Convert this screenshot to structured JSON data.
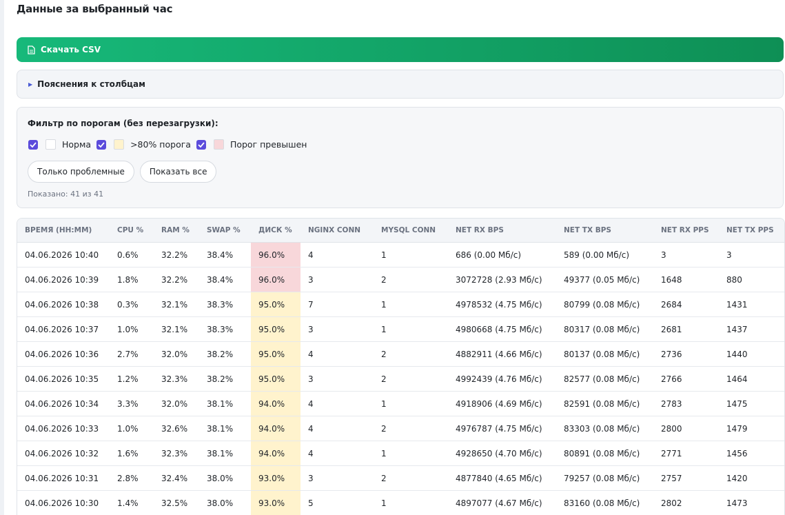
{
  "header": {
    "title": "Данные за выбранный час"
  },
  "download_button": {
    "label": "Скачать CSV"
  },
  "details": {
    "label": "Пояснения к столбцам"
  },
  "filter": {
    "title": "Фильтр по порогам (без перезагрузки):",
    "options": [
      {
        "label": "Норма",
        "color": "#ffffff",
        "checked": true
      },
      {
        "label": ">80% порога",
        "color": "#fff3cd",
        "checked": true
      },
      {
        "label": "Порог превышен",
        "color": "#f8d7da",
        "checked": true
      }
    ],
    "buttons": [
      "Только проблемные",
      "Показать все"
    ],
    "status": "Показано: 41 из 41"
  },
  "table": {
    "columns": [
      "ВРЕМЯ (HH:MM)",
      "CPU %",
      "RAM %",
      "SWAP %",
      "ДИСК %",
      "NGINX CONN",
      "MYSQL CONN",
      "NET RX BPS",
      "NET TX BPS",
      "NET RX PPS",
      "NET TX PPS"
    ],
    "rows": [
      [
        "04.06.2026 10:40",
        "0.6%",
        "32.2%",
        "38.4%",
        "96.0%",
        "4",
        "1",
        "686 (0.00 Мб/с)",
        "589 (0.00 Мб/с)",
        "3",
        "3"
      ],
      [
        "04.06.2026 10:39",
        "1.8%",
        "32.2%",
        "38.4%",
        "96.0%",
        "3",
        "2",
        "3072728 (2.93 Мб/с)",
        "49377 (0.05 Мб/с)",
        "1648",
        "880"
      ],
      [
        "04.06.2026 10:38",
        "0.3%",
        "32.1%",
        "38.3%",
        "95.0%",
        "7",
        "1",
        "4978532 (4.75 Мб/с)",
        "80799 (0.08 Мб/с)",
        "2684",
        "1431"
      ],
      [
        "04.06.2026 10:37",
        "1.0%",
        "32.1%",
        "38.3%",
        "95.0%",
        "3",
        "1",
        "4980668 (4.75 Мб/с)",
        "80317 (0.08 Мб/с)",
        "2681",
        "1437"
      ],
      [
        "04.06.2026 10:36",
        "2.7%",
        "32.0%",
        "38.2%",
        "95.0%",
        "4",
        "2",
        "4882911 (4.66 Мб/с)",
        "80137 (0.08 Мб/с)",
        "2736",
        "1440"
      ],
      [
        "04.06.2026 10:35",
        "1.2%",
        "32.3%",
        "38.2%",
        "95.0%",
        "3",
        "2",
        "4992439 (4.76 Мб/с)",
        "82577 (0.08 Мб/с)",
        "2766",
        "1464"
      ],
      [
        "04.06.2026 10:34",
        "3.3%",
        "32.0%",
        "38.1%",
        "94.0%",
        "4",
        "1",
        "4918906 (4.69 Мб/с)",
        "82591 (0.08 Мб/с)",
        "2783",
        "1475"
      ],
      [
        "04.06.2026 10:33",
        "1.0%",
        "32.6%",
        "38.1%",
        "94.0%",
        "4",
        "2",
        "4976787 (4.75 Мб/с)",
        "83303 (0.08 Мб/с)",
        "2800",
        "1479"
      ],
      [
        "04.06.2026 10:32",
        "1.6%",
        "32.3%",
        "38.1%",
        "94.0%",
        "4",
        "1",
        "4928650 (4.70 Мб/с)",
        "80891 (0.08 Мб/с)",
        "2771",
        "1456"
      ],
      [
        "04.06.2026 10:31",
        "2.8%",
        "32.4%",
        "38.0%",
        "93.0%",
        "3",
        "2",
        "4877840 (4.65 Мб/с)",
        "79257 (0.08 Мб/с)",
        "2757",
        "1420"
      ],
      [
        "04.06.2026 10:30",
        "1.4%",
        "32.5%",
        "38.0%",
        "93.0%",
        "5",
        "1",
        "4897077 (4.67 Мб/с)",
        "83160 (0.08 Мб/с)",
        "2802",
        "1473"
      ]
    ],
    "disk_colors": [
      "#f8d7da",
      "#f8d7da",
      "#fff3cd",
      "#fff3cd",
      "#fff3cd",
      "#fff3cd",
      "#fff3cd",
      "#fff3cd",
      "#fff3cd",
      "#fff3cd",
      "#fff3cd"
    ]
  }
}
